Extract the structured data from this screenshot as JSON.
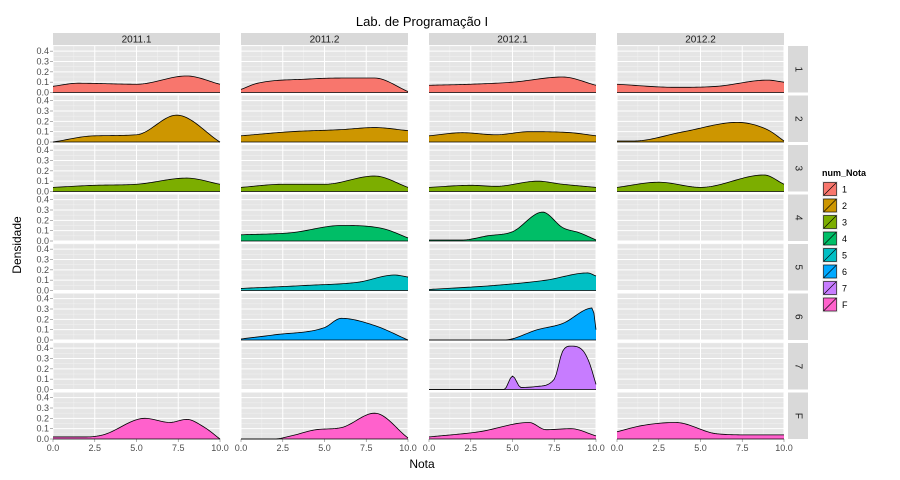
{
  "chart_data": {
    "type": "area",
    "title": "Lab. de Programação I",
    "xlabel": "Nota",
    "ylabel": "Densidade",
    "xlim": [
      0,
      10
    ],
    "ylim": [
      0,
      0.45
    ],
    "x_ticks": [
      "0.0",
      "2.5",
      "5.0",
      "7.5",
      "10.0"
    ],
    "x_tick_values": [
      0,
      2.5,
      5,
      7.5,
      10
    ],
    "y_ticks": [
      "0.0",
      "0.1",
      "0.2",
      "0.3",
      "0.4"
    ],
    "y_tick_values": [
      0,
      0.1,
      0.2,
      0.3,
      0.4
    ],
    "grid": true,
    "legend_position": "right",
    "columns": [
      "2011.1",
      "2011.2",
      "2012.1",
      "2012.2"
    ],
    "rows": [
      "1",
      "2",
      "3",
      "4",
      "5",
      "6",
      "7",
      "F"
    ],
    "legend": {
      "title": "num_Nota",
      "labels": [
        "1",
        "2",
        "3",
        "4",
        "5",
        "6",
        "7",
        "F"
      ]
    },
    "colors": [
      "#F8766D",
      "#CD9600",
      "#7CAE00",
      "#00BE67",
      "#00BFC4",
      "#00A9FF",
      "#C77CFF",
      "#FF61CC"
    ],
    "x_grid": [
      0,
      1,
      2,
      3,
      4,
      5,
      6,
      7,
      8,
      9,
      10
    ],
    "panels": [
      {
        "row": "1",
        "column": "2011.1",
        "x": [
          0.0,
          1.5,
          5.0,
          8.0,
          10.0
        ],
        "y": [
          0.06,
          0.09,
          0.08,
          0.16,
          0.08
        ]
      },
      {
        "row": "2",
        "column": "2011.1",
        "x": [
          0.0,
          2.5,
          5.0,
          7.4,
          10.0
        ],
        "y": [
          0.0,
          0.06,
          0.07,
          0.26,
          0.0
        ]
      },
      {
        "row": "3",
        "column": "2011.1",
        "x": [
          0.0,
          2.5,
          5.0,
          8.0,
          10.0
        ],
        "y": [
          0.04,
          0.06,
          0.07,
          0.13,
          0.07
        ]
      },
      {
        "row": "F",
        "column": "2011.1",
        "x": [
          0.0,
          2.0,
          3.0,
          5.5,
          7.0,
          8.0,
          9.0,
          10.0
        ],
        "y": [
          0.02,
          0.02,
          0.04,
          0.2,
          0.16,
          0.19,
          0.12,
          0.0
        ]
      },
      {
        "row": "1",
        "column": "2011.2",
        "x": [
          0.0,
          1.0,
          4.0,
          6.0,
          8.0,
          10.0
        ],
        "y": [
          0.03,
          0.09,
          0.13,
          0.14,
          0.14,
          0.01
        ]
      },
      {
        "row": "2",
        "column": "2011.2",
        "x": [
          0.0,
          3.0,
          6.0,
          8.0,
          10.0
        ],
        "y": [
          0.06,
          0.1,
          0.12,
          0.14,
          0.11
        ]
      },
      {
        "row": "3",
        "column": "2011.2",
        "x": [
          0.0,
          2.5,
          5.0,
          8.0,
          10.0
        ],
        "y": [
          0.04,
          0.07,
          0.07,
          0.15,
          0.04
        ]
      },
      {
        "row": "4",
        "column": "2011.2",
        "x": [
          0.0,
          3.0,
          6.0,
          8.5,
          10.0
        ],
        "y": [
          0.06,
          0.08,
          0.15,
          0.12,
          0.03
        ]
      },
      {
        "row": "5",
        "column": "2011.2",
        "x": [
          0.0,
          4.0,
          7.0,
          9.2,
          10.0
        ],
        "y": [
          0.02,
          0.05,
          0.08,
          0.15,
          0.13
        ]
      },
      {
        "row": "6",
        "column": "2011.2",
        "x": [
          0.0,
          2.0,
          5.0,
          6.0,
          8.0,
          10.0
        ],
        "y": [
          0.01,
          0.05,
          0.12,
          0.21,
          0.14,
          0.0
        ]
      },
      {
        "row": "F",
        "column": "2011.2",
        "x": [
          0.0,
          2.0,
          3.0,
          4.5,
          6.0,
          8.0,
          10.0
        ],
        "y": [
          0.0,
          0.0,
          0.03,
          0.09,
          0.11,
          0.25,
          0.01
        ]
      },
      {
        "row": "1",
        "column": "2012.1",
        "x": [
          0.0,
          2.5,
          5.0,
          8.0,
          10.0
        ],
        "y": [
          0.07,
          0.08,
          0.1,
          0.15,
          0.07
        ]
      },
      {
        "row": "2",
        "column": "2012.1",
        "x": [
          0.0,
          2.0,
          4.0,
          6.0,
          8.5,
          10.0
        ],
        "y": [
          0.06,
          0.09,
          0.07,
          0.1,
          0.09,
          0.06
        ]
      },
      {
        "row": "3",
        "column": "2012.1",
        "x": [
          0.0,
          2.5,
          4.0,
          6.5,
          8.0,
          10.0
        ],
        "y": [
          0.04,
          0.06,
          0.05,
          0.1,
          0.07,
          0.04
        ]
      },
      {
        "row": "4",
        "column": "2012.1",
        "x": [
          0.0,
          2.0,
          3.5,
          5.0,
          6.8,
          8.0,
          9.0,
          10.0
        ],
        "y": [
          0.01,
          0.01,
          0.05,
          0.09,
          0.28,
          0.13,
          0.08,
          0.01
        ]
      },
      {
        "row": "5",
        "column": "2012.1",
        "x": [
          0.0,
          4.0,
          7.0,
          9.5,
          10.0
        ],
        "y": [
          0.01,
          0.05,
          0.1,
          0.17,
          0.14
        ]
      },
      {
        "row": "6",
        "column": "2012.1",
        "x": [
          0.0,
          4.5,
          6.5,
          8.0,
          9.8,
          10.0
        ],
        "y": [
          0.0,
          0.0,
          0.1,
          0.16,
          0.31,
          0.1
        ]
      },
      {
        "row": "7",
        "column": "2012.1",
        "x": [
          0.0,
          4.5,
          5.0,
          5.5,
          6.5,
          7.5,
          8.0,
          8.5,
          9.2,
          9.6,
          10.0
        ],
        "y": [
          0.0,
          0.0,
          0.13,
          0.02,
          0.03,
          0.1,
          0.37,
          0.42,
          0.38,
          0.26,
          0.05
        ]
      },
      {
        "row": "F",
        "column": "2012.1",
        "x": [
          0.0,
          3.0,
          6.0,
          7.0,
          8.5,
          10.0
        ],
        "y": [
          0.02,
          0.07,
          0.16,
          0.09,
          0.1,
          0.03
        ]
      },
      {
        "row": "1",
        "column": "2012.2",
        "x": [
          0.0,
          3.5,
          6.0,
          9.0,
          10.0
        ],
        "y": [
          0.08,
          0.05,
          0.06,
          0.12,
          0.1
        ]
      },
      {
        "row": "2",
        "column": "2012.2",
        "x": [
          0.0,
          1.0,
          4.0,
          7.2,
          9.0,
          10.0
        ],
        "y": [
          0.01,
          0.01,
          0.1,
          0.19,
          0.12,
          0.01
        ]
      },
      {
        "row": "3",
        "column": "2012.2",
        "x": [
          0.0,
          2.5,
          5.0,
          8.8,
          10.0
        ],
        "y": [
          0.04,
          0.09,
          0.04,
          0.16,
          0.07
        ]
      },
      {
        "row": "F",
        "column": "2012.2",
        "x": [
          0.0,
          1.5,
          3.5,
          6.0,
          8.0,
          10.0
        ],
        "y": [
          0.07,
          0.13,
          0.16,
          0.05,
          0.04,
          0.04
        ]
      }
    ]
  }
}
